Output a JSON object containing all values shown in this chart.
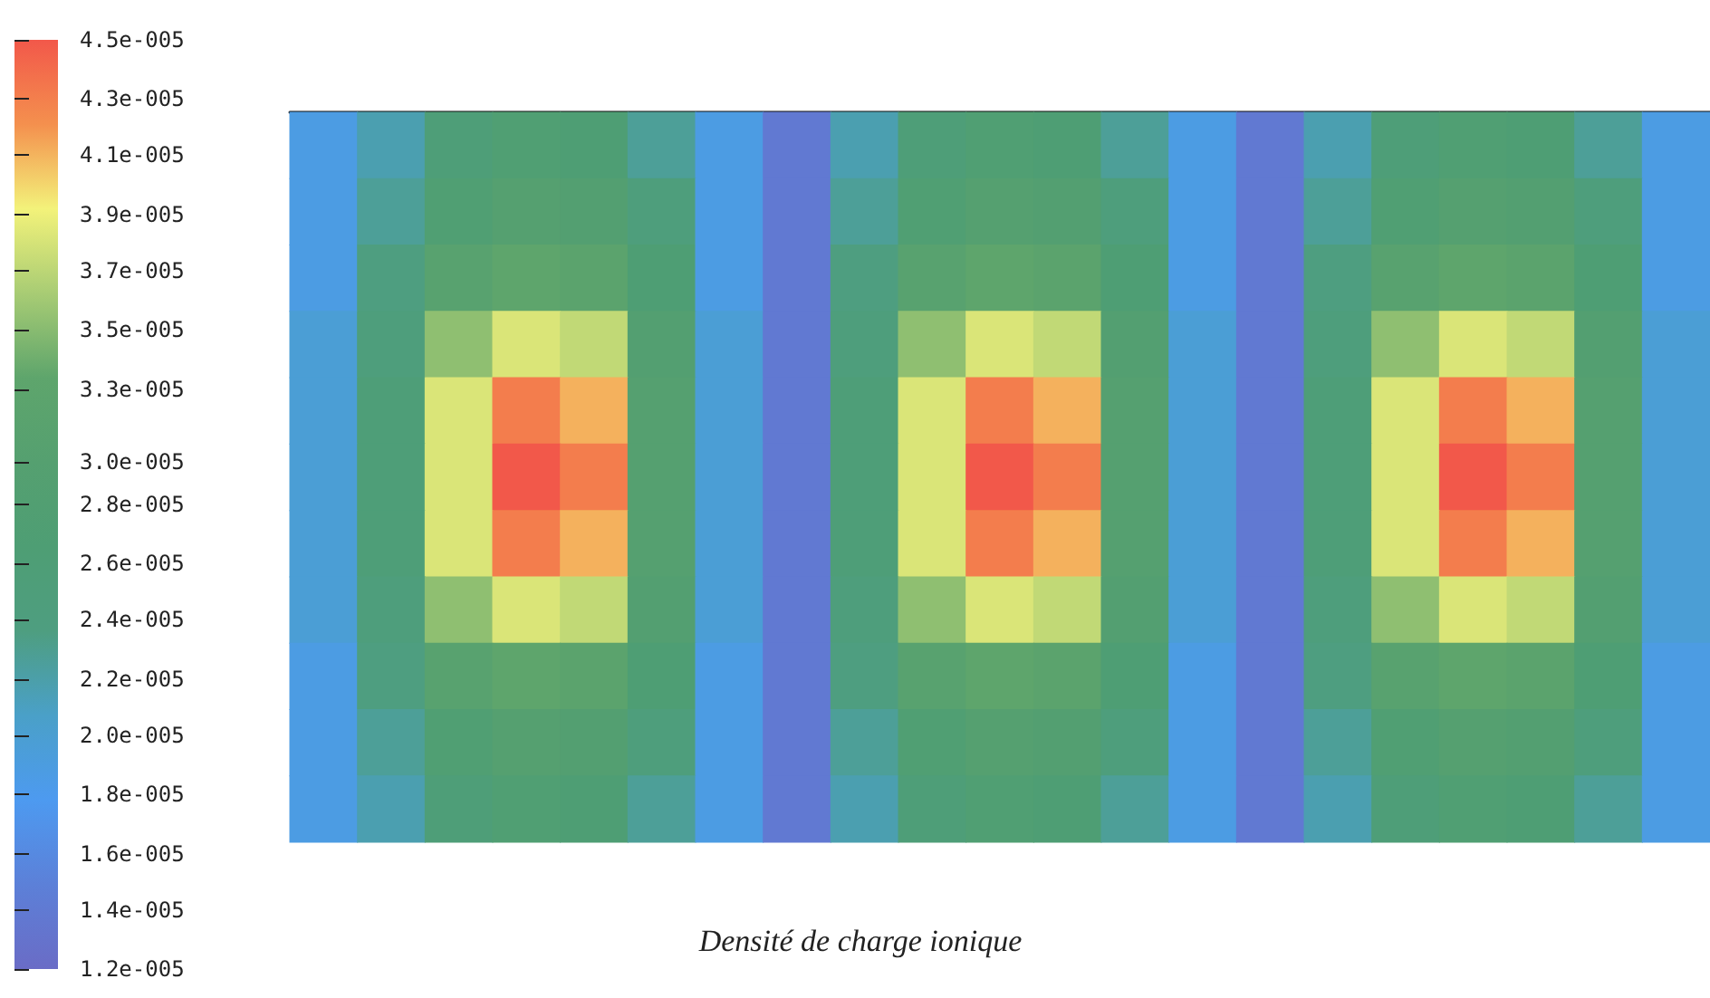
{
  "chart_data": {
    "type": "heatmap",
    "title": "Densité de charge ionique",
    "categories": [
      null,
      null,
      null,
      null,
      null,
      null,
      null,
      null,
      null,
      null,
      null,
      null,
      null,
      null,
      null,
      null,
      null,
      null,
      null,
      null,
      null
    ],
    "y_categories": [
      null,
      null,
      null,
      null,
      null,
      null,
      null,
      null,
      null,
      null,
      null
    ],
    "cells": [
      [
        1.9e-05,
        2.2e-05,
        2.6e-05,
        2.8e-05,
        2.7e-05,
        2.3e-05,
        1.9e-05,
        1.4e-05,
        2.2e-05,
        2.6e-05,
        2.8e-05,
        2.7e-05,
        2.3e-05,
        1.9e-05,
        1.4e-05,
        2.2e-05,
        2.6e-05,
        2.8e-05,
        2.7e-05,
        2.3e-05,
        1.9e-05
      ],
      [
        1.9e-05,
        2.3e-05,
        2.8e-05,
        3e-05,
        2.9e-05,
        2.5e-05,
        1.9e-05,
        1.4e-05,
        2.3e-05,
        2.8e-05,
        3e-05,
        2.9e-05,
        2.5e-05,
        1.9e-05,
        1.4e-05,
        2.3e-05,
        2.8e-05,
        3e-05,
        2.9e-05,
        2.5e-05,
        1.9e-05
      ],
      [
        1.9e-05,
        2.4e-05,
        3.1e-05,
        3.3e-05,
        3.2e-05,
        2.7e-05,
        1.9e-05,
        1.4e-05,
        2.4e-05,
        3.1e-05,
        3.3e-05,
        3.2e-05,
        2.7e-05,
        1.9e-05,
        1.4e-05,
        2.4e-05,
        3.1e-05,
        3.3e-05,
        3.2e-05,
        2.7e-05,
        1.9e-05
      ],
      [
        2e-05,
        2.5e-05,
        3.5e-05,
        3.8e-05,
        3.7e-05,
        2.9e-05,
        2e-05,
        1.4e-05,
        2.5e-05,
        3.5e-05,
        3.8e-05,
        3.7e-05,
        2.9e-05,
        2e-05,
        1.4e-05,
        2.5e-05,
        3.5e-05,
        3.8e-05,
        3.7e-05,
        2.9e-05,
        2e-05
      ],
      [
        2e-05,
        2.6e-05,
        3.8e-05,
        4.3e-05,
        4.1e-05,
        3e-05,
        2e-05,
        1.4e-05,
        2.6e-05,
        3.8e-05,
        4.3e-05,
        4.1e-05,
        3e-05,
        2e-05,
        1.4e-05,
        2.6e-05,
        3.8e-05,
        4.3e-05,
        4.1e-05,
        3e-05,
        2e-05
      ],
      [
        2e-05,
        2.6e-05,
        3.8e-05,
        4.5e-05,
        4.3e-05,
        3e-05,
        2e-05,
        1.4e-05,
        2.6e-05,
        3.8e-05,
        4.5e-05,
        4.3e-05,
        3e-05,
        2e-05,
        1.4e-05,
        2.6e-05,
        3.8e-05,
        4.5e-05,
        4.3e-05,
        3e-05,
        2e-05
      ],
      [
        2e-05,
        2.6e-05,
        3.8e-05,
        4.3e-05,
        4.1e-05,
        3e-05,
        2e-05,
        1.4e-05,
        2.6e-05,
        3.8e-05,
        4.3e-05,
        4.1e-05,
        3e-05,
        2e-05,
        1.4e-05,
        2.6e-05,
        3.8e-05,
        4.3e-05,
        4.1e-05,
        3e-05,
        2e-05
      ],
      [
        2e-05,
        2.5e-05,
        3.5e-05,
        3.8e-05,
        3.7e-05,
        2.9e-05,
        2e-05,
        1.4e-05,
        2.5e-05,
        3.5e-05,
        3.8e-05,
        3.7e-05,
        2.9e-05,
        2e-05,
        1.4e-05,
        2.5e-05,
        3.5e-05,
        3.8e-05,
        3.7e-05,
        2.9e-05,
        2e-05
      ],
      [
        1.9e-05,
        2.4e-05,
        3.1e-05,
        3.3e-05,
        3.2e-05,
        2.7e-05,
        1.9e-05,
        1.4e-05,
        2.4e-05,
        3.1e-05,
        3.3e-05,
        3.2e-05,
        2.7e-05,
        1.9e-05,
        1.4e-05,
        2.4e-05,
        3.1e-05,
        3.3e-05,
        3.2e-05,
        2.7e-05,
        1.9e-05
      ],
      [
        1.9e-05,
        2.3e-05,
        2.8e-05,
        3e-05,
        2.9e-05,
        2.5e-05,
        1.9e-05,
        1.4e-05,
        2.3e-05,
        2.8e-05,
        3e-05,
        2.9e-05,
        2.5e-05,
        1.9e-05,
        1.4e-05,
        2.3e-05,
        2.8e-05,
        3e-05,
        2.9e-05,
        2.5e-05,
        1.9e-05
      ],
      [
        1.9e-05,
        2.2e-05,
        2.6e-05,
        2.8e-05,
        2.7e-05,
        2.3e-05,
        1.9e-05,
        1.4e-05,
        2.2e-05,
        2.6e-05,
        2.8e-05,
        2.7e-05,
        2.3e-05,
        1.9e-05,
        1.4e-05,
        2.2e-05,
        2.6e-05,
        2.8e-05,
        2.7e-05,
        2.3e-05,
        1.9e-05
      ]
    ],
    "clim": [
      1.2e-05,
      4.5e-05
    ],
    "cticks": [
      {
        "value": 4.5e-05,
        "label": "4.5e-005"
      },
      {
        "value": 4.29e-05,
        "label": "4.3e-005"
      },
      {
        "value": 4.09e-05,
        "label": "4.1e-005"
      },
      {
        "value": 3.88e-05,
        "label": "3.9e-005"
      },
      {
        "value": 3.68e-05,
        "label": "3.7e-005"
      },
      {
        "value": 3.47e-05,
        "label": "3.5e-005"
      },
      {
        "value": 3.26e-05,
        "label": "3.3e-005"
      },
      {
        "value": 3e-05,
        "label": "3.0e-005"
      },
      {
        "value": 2.85e-05,
        "label": "2.8e-005"
      },
      {
        "value": 2.64e-05,
        "label": "2.6e-005"
      },
      {
        "value": 2.44e-05,
        "label": "2.4e-005"
      },
      {
        "value": 2.23e-05,
        "label": "2.2e-005"
      },
      {
        "value": 2.03e-05,
        "label": "2.0e-005"
      },
      {
        "value": 1.82e-05,
        "label": "1.8e-005"
      },
      {
        "value": 1.61e-05,
        "label": "1.6e-005"
      },
      {
        "value": 1.41e-05,
        "label": "1.4e-005"
      },
      {
        "value": 1.2e-05,
        "label": "1.2e-005"
      }
    ]
  }
}
